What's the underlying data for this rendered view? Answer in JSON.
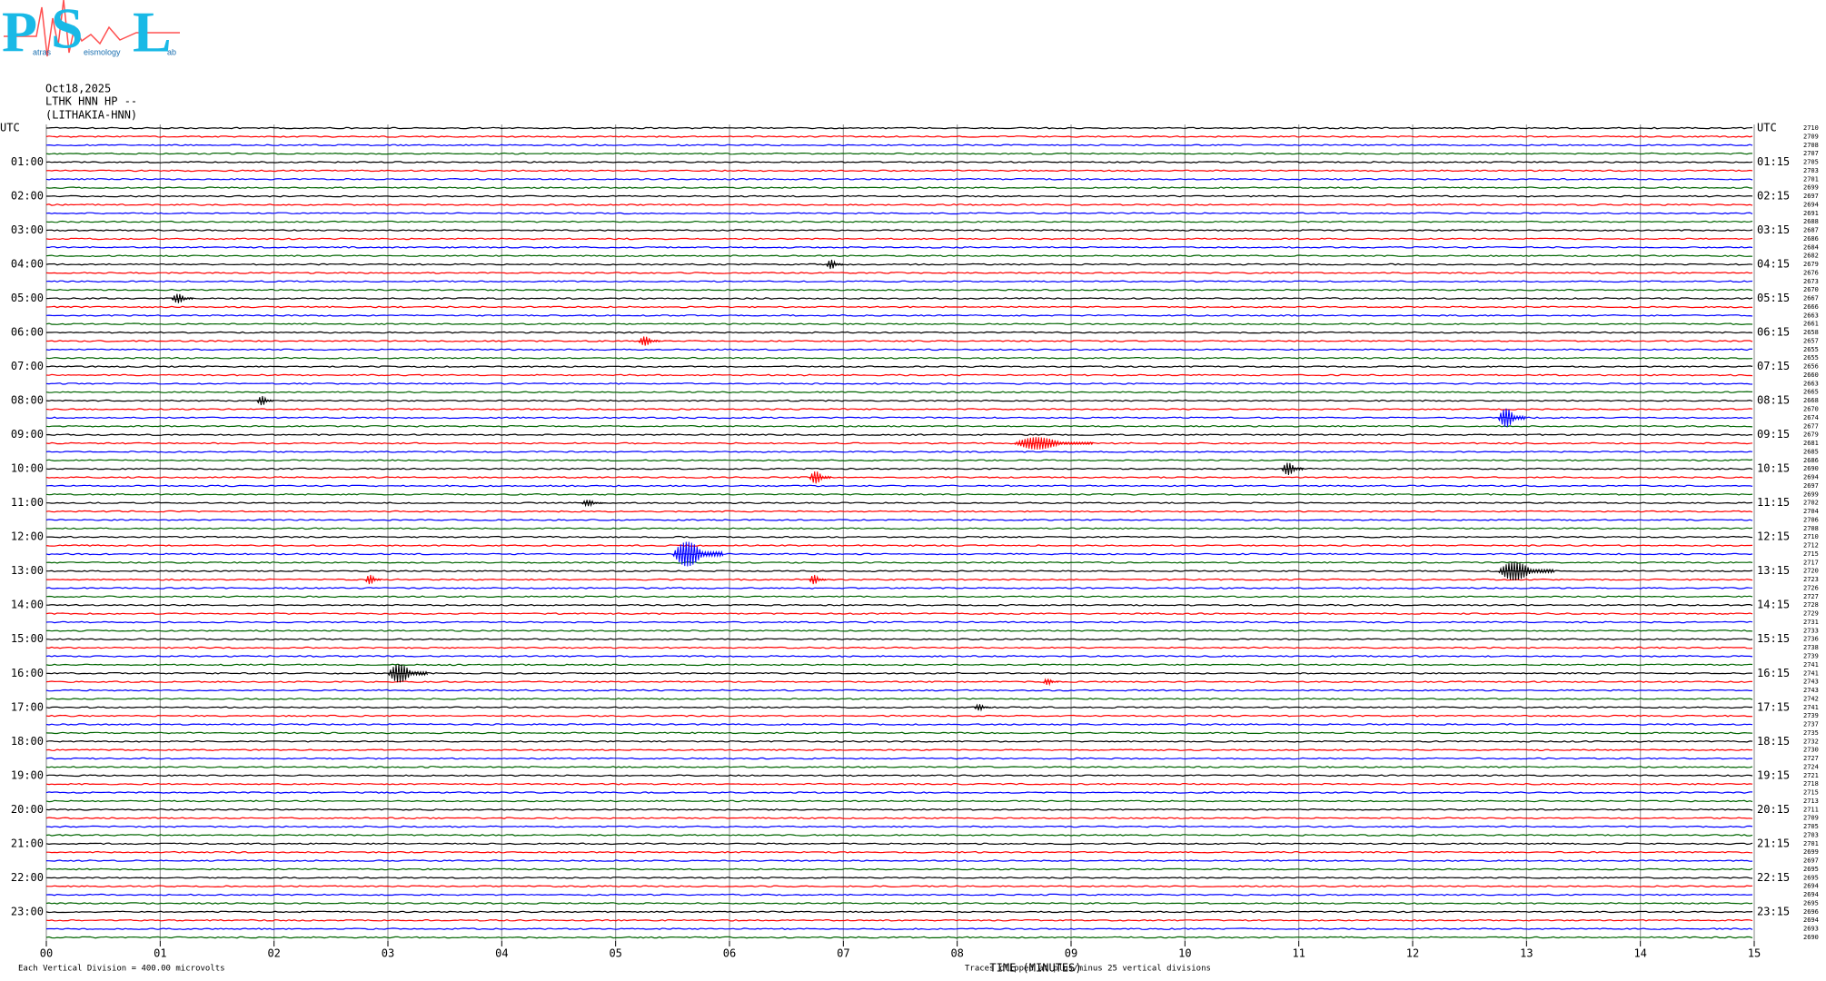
{
  "logo": {
    "letters": [
      "P",
      "S",
      "L"
    ],
    "words": [
      "atras",
      "eismology",
      "ab"
    ]
  },
  "header": [
    "Oct18,2025",
    "LTHK HNN HP --",
    "(LITHAKIA-HNN)"
  ],
  "chart_data": {
    "type": "helicorder",
    "xlabel": "TIME (MINUTES)",
    "scale_note": "Each Vertical Division =  400.00 microvolts",
    "clip_note": "Traces clipped at plus/minus 25 vertical divisions",
    "xlim": [
      0,
      15
    ],
    "xticks": [
      {
        "value": 0,
        "label": "00"
      },
      {
        "value": 1,
        "label": "01"
      },
      {
        "value": 2,
        "label": "02"
      },
      {
        "value": 3,
        "label": "03"
      },
      {
        "value": 4,
        "label": "04"
      },
      {
        "value": 5,
        "label": "05"
      },
      {
        "value": 6,
        "label": "06"
      },
      {
        "value": 7,
        "label": "07"
      },
      {
        "value": 8,
        "label": "08"
      },
      {
        "value": 9,
        "label": "09"
      },
      {
        "value": 10,
        "label": "10"
      },
      {
        "value": 11,
        "label": "11"
      },
      {
        "value": 12,
        "label": "12"
      },
      {
        "value": 13,
        "label": "13"
      },
      {
        "value": 14,
        "label": "14"
      },
      {
        "value": 15,
        "label": "15"
      }
    ],
    "grid": true,
    "colors": [
      "#000000",
      "#ff0000",
      "#0000ff",
      "#006400"
    ],
    "left_labels": [
      "UTC",
      "01:00",
      "02:00",
      "03:00",
      "04:00",
      "05:00",
      "06:00",
      "07:00",
      "08:00",
      "09:00",
      "10:00",
      "11:00",
      "12:00",
      "13:00",
      "14:00",
      "15:00",
      "16:00",
      "17:00",
      "18:00",
      "19:00",
      "20:00",
      "21:00",
      "22:00",
      "23:00"
    ],
    "right_labels": [
      "UTC",
      "01:15",
      "02:15",
      "03:15",
      "04:15",
      "05:15",
      "06:15",
      "07:15",
      "08:15",
      "09:15",
      "10:15",
      "11:15",
      "12:15",
      "13:15",
      "14:15",
      "15:15",
      "16:15",
      "17:15",
      "18:15",
      "19:15",
      "20:15",
      "21:15",
      "22:15",
      "23:15"
    ],
    "trace_labels": [
      2710,
      2709,
      2708,
      2707,
      2705,
      2703,
      2701,
      2699,
      2697,
      2694,
      2691,
      2688,
      2687,
      2686,
      2684,
      2682,
      2679,
      2676,
      2673,
      2670,
      2667,
      2666,
      2663,
      2661,
      2658,
      2657,
      2655,
      2655,
      2656,
      2660,
      2663,
      2665,
      2668,
      2670,
      2674,
      2677,
      2679,
      2681,
      2685,
      2686,
      2690,
      2694,
      2697,
      2699,
      2702,
      2704,
      2706,
      2708,
      2710,
      2712,
      2715,
      2717,
      2720,
      2723,
      2726,
      2727,
      2728,
      2729,
      2731,
      2733,
      2736,
      2738,
      2739,
      2741,
      2741,
      2743,
      2743,
      2742,
      2741,
      2739,
      2737,
      2735,
      2732,
      2730,
      2727,
      2724,
      2721,
      2718,
      2715,
      2713,
      2711,
      2709,
      2705,
      2703,
      2701,
      2699,
      2697,
      2695,
      2695,
      2694,
      2694,
      2695,
      2696,
      2694,
      2693,
      2690
    ],
    "events": [
      {
        "trace": 50,
        "minute": 5.5,
        "duration": 0.45,
        "amplitude": 8
      },
      {
        "trace": 52,
        "minute": 12.75,
        "duration": 0.5,
        "amplitude": 6
      },
      {
        "trace": 64,
        "minute": 3.0,
        "duration": 0.35,
        "amplitude": 6
      },
      {
        "trace": 34,
        "minute": 12.75,
        "duration": 0.25,
        "amplitude": 6
      },
      {
        "trace": 37,
        "minute": 8.5,
        "duration": 0.7,
        "amplitude": 4
      },
      {
        "trace": 41,
        "minute": 6.7,
        "duration": 0.2,
        "amplitude": 4
      },
      {
        "trace": 40,
        "minute": 10.85,
        "duration": 0.2,
        "amplitude": 4
      },
      {
        "trace": 16,
        "minute": 6.85,
        "duration": 0.15,
        "amplitude": 3
      },
      {
        "trace": 20,
        "minute": 1.1,
        "duration": 0.2,
        "amplitude": 3
      },
      {
        "trace": 25,
        "minute": 5.2,
        "duration": 0.2,
        "amplitude": 3
      },
      {
        "trace": 68,
        "minute": 8.15,
        "duration": 0.15,
        "amplitude": 2
      },
      {
        "trace": 53,
        "minute": 2.8,
        "duration": 0.15,
        "amplitude": 3
      },
      {
        "trace": 53,
        "minute": 6.7,
        "duration": 0.15,
        "amplitude": 3
      },
      {
        "trace": 65,
        "minute": 8.75,
        "duration": 0.15,
        "amplitude": 2
      },
      {
        "trace": 32,
        "minute": 1.85,
        "duration": 0.15,
        "amplitude": 3
      },
      {
        "trace": 44,
        "minute": 4.7,
        "duration": 0.2,
        "amplitude": 2
      }
    ]
  }
}
